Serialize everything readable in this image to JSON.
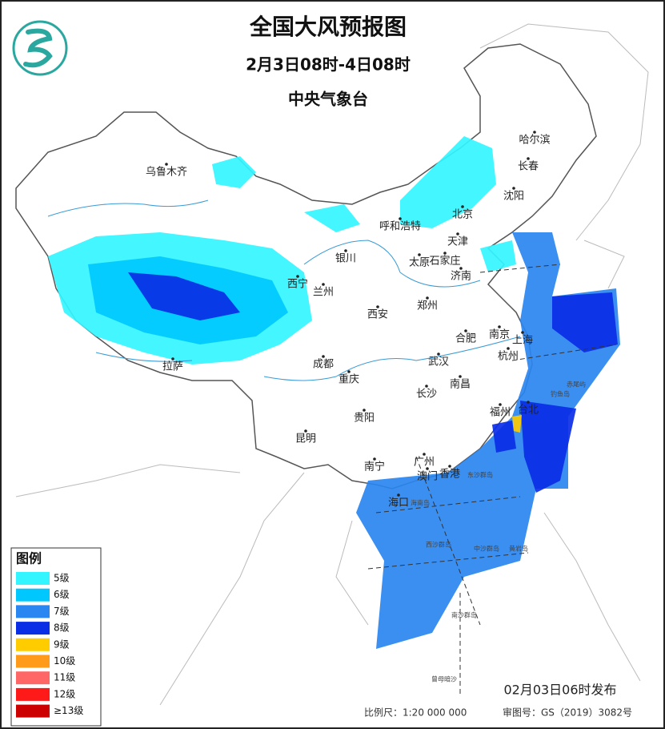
{
  "header": {
    "title": "全国大风预报图",
    "subtitle": "2月3日08时-4日08时",
    "issuer": "中央气象台"
  },
  "legend": {
    "title": "图例",
    "items": [
      {
        "label": "5级",
        "color": "#33f5ff"
      },
      {
        "label": "6级",
        "color": "#00c8ff"
      },
      {
        "label": "7级",
        "color": "#2a86f0"
      },
      {
        "label": "8级",
        "color": "#0a2ee6"
      },
      {
        "label": "9级",
        "color": "#ffcc00"
      },
      {
        "label": "10级",
        "color": "#ff9a1a"
      },
      {
        "label": "11级",
        "color": "#ff6666"
      },
      {
        "label": "12级",
        "color": "#ff1a1a"
      },
      {
        "label": "≥13级",
        "color": "#cc0000"
      }
    ]
  },
  "cities": [
    "乌鲁木齐",
    "哈尔滨",
    "长春",
    "沈阳",
    "北京",
    "呼和浩特",
    "天津",
    "太原",
    "石家庄",
    "银川",
    "济南",
    "西宁",
    "兰州",
    "郑州",
    "西安",
    "南京",
    "合肥",
    "上海",
    "杭州",
    "成都",
    "武汉",
    "重庆",
    "拉萨",
    "长沙",
    "南昌",
    "福州",
    "台北",
    "贵阳",
    "昆明",
    "南宁",
    "广州",
    "澳门",
    "香港",
    "海口"
  ],
  "islands": [
    "东沙群岛",
    "西沙群岛",
    "中沙群岛",
    "黄岩岛",
    "南沙群岛",
    "曾母暗沙",
    "海南岛",
    "钓鱼岛",
    "赤尾屿"
  ],
  "footer": {
    "issued": "02月03日06时发布",
    "scale": "比例尺：1:20 000 000",
    "review_no": "审图号：GS（2019）3082号"
  }
}
